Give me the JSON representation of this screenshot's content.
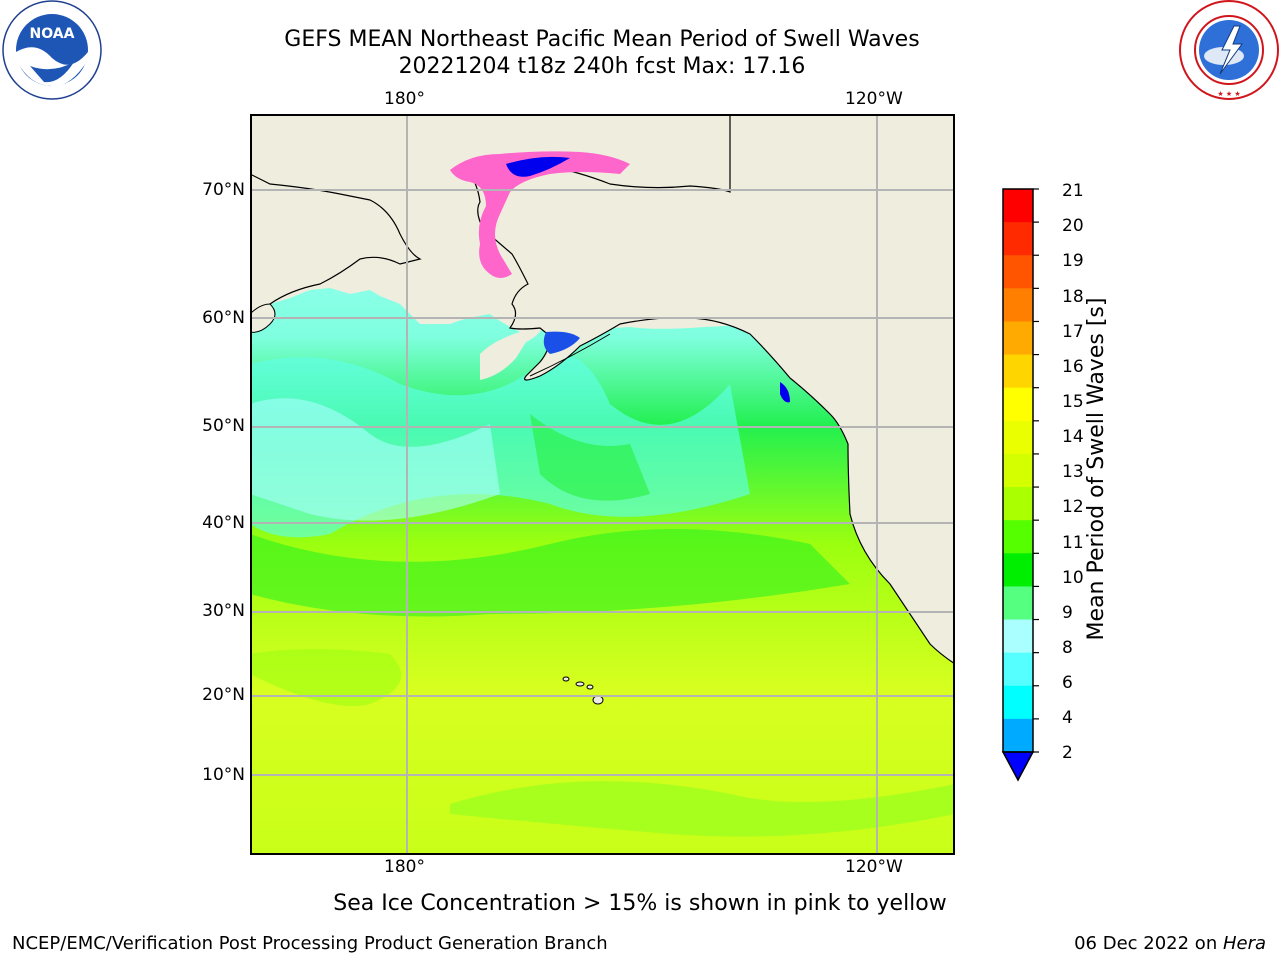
{
  "header": {
    "title_line1": "GEFS MEAN Northeast Pacific Mean Period of Swell Waves",
    "title_line2": "20221204 t18z 240h fcst   Max: 17.16"
  },
  "logos": {
    "noaa_text": "NOAA",
    "noaa_ring": "NATIONAL OCEANIC AND ATMOSPHERIC ADMINISTRATION",
    "noaa_ring_bottom": "U.S. DEPARTMENT OF COMMERCE",
    "nws_ring": "NATIONAL WEATHER SERVICE"
  },
  "map": {
    "lon_labels": [
      "180°",
      "120°W"
    ],
    "lat_labels": [
      "70°N",
      "60°N",
      "50°N",
      "40°N",
      "30°N",
      "20°N",
      "10°N"
    ],
    "land_color": "#efedde",
    "grid_color": "#b4b4b4"
  },
  "colorbar": {
    "label": "Mean Period of Swell Waves [s]",
    "ticks": [
      "21",
      "20",
      "19",
      "18",
      "17",
      "16",
      "15",
      "14",
      "13",
      "12",
      "11",
      "10",
      "9",
      "8",
      "6",
      "4",
      "2"
    ],
    "colors": [
      "#ff0000",
      "#ff2a00",
      "#ff5500",
      "#ff8000",
      "#ffaa00",
      "#ffd500",
      "#ffff00",
      "#eaff00",
      "#d4ff00",
      "#aaff00",
      "#55ff00",
      "#00ee00",
      "#55ff80",
      "#aaffff",
      "#55ffff",
      "#00ffff",
      "#00aaff"
    ],
    "under_color": "#0000ff"
  },
  "caption": "Sea Ice Concentration > 15% is shown in pink to yellow",
  "footer": {
    "left": "NCEP/EMC/Verification Post Processing Product Generation Branch",
    "date": "06 Dec 2022 on ",
    "machine": "Hera"
  }
}
